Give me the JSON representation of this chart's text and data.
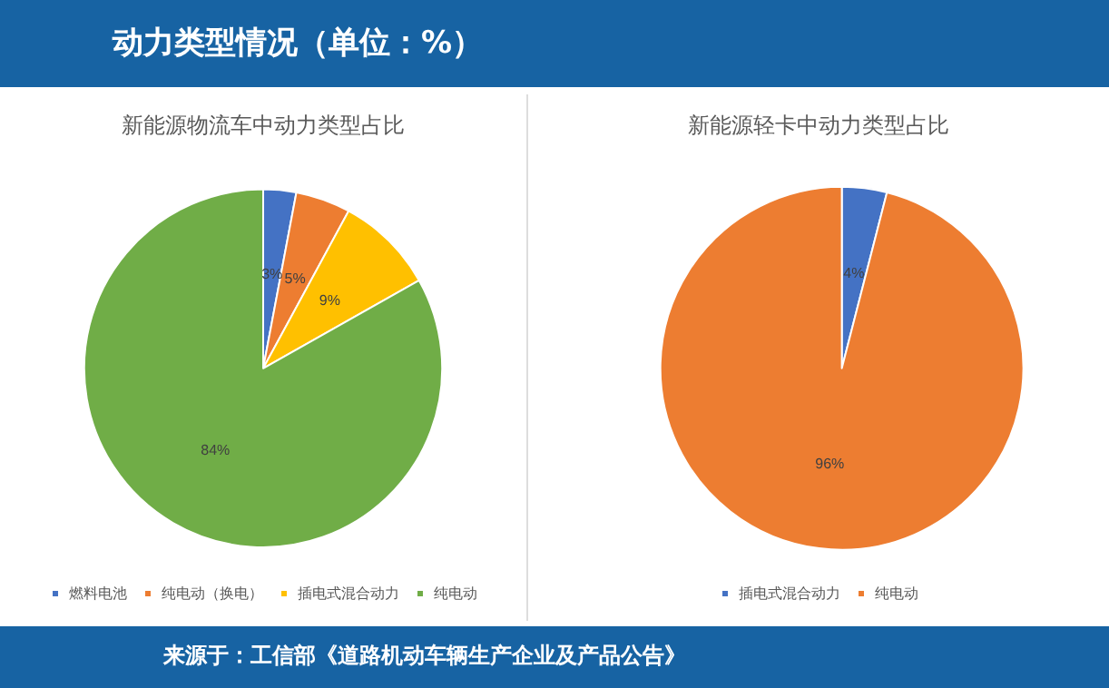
{
  "chart_data": [
    {
      "type": "pie",
      "title": "新能源物流车中动力类型占比",
      "annotations": [
        "动力类型情况（单位：%）"
      ],
      "categories": [
        "燃料电池",
        "纯电动（换电）",
        "插电式混合动力",
        "纯电动"
      ],
      "values": [
        3,
        5,
        9,
        84
      ],
      "value_labels": [
        "3%",
        "5%",
        "9%",
        "84%"
      ],
      "colors": [
        "#4472c4",
        "#ed7d31",
        "#ffc000",
        "#70ad47"
      ],
      "legend": "bottom"
    },
    {
      "type": "pie",
      "title": "新能源轻卡中动力类型占比",
      "annotations": [
        "来源于：工信部《道路机动车辆生产企业及产品公告》"
      ],
      "categories": [
        "插电式混合动力",
        "纯电动"
      ],
      "values": [
        4,
        96
      ],
      "value_labels": [
        "4%",
        "96%"
      ],
      "colors": [
        "#4472c4",
        "#ed7d31"
      ],
      "legend": "bottom"
    }
  ]
}
